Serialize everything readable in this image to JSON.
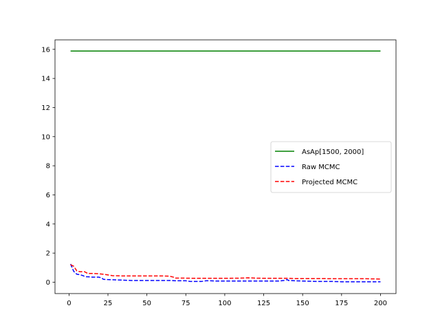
{
  "chart_data": {
    "type": "line",
    "title": "",
    "xlabel": "",
    "ylabel": "",
    "xlim": [
      -9,
      209.95
    ],
    "ylim": [
      -0.78,
      16.65
    ],
    "xticks": [
      0,
      25,
      50,
      75,
      100,
      125,
      150,
      175,
      200
    ],
    "yticks": [
      0,
      2,
      4,
      6,
      8,
      10,
      12,
      14,
      16
    ],
    "grid": false,
    "legend_position": "center-right",
    "series": [
      {
        "name": "AsAp[1500, 2000]",
        "color": "#008000",
        "style": "solid",
        "x": [
          1,
          200
        ],
        "y": [
          15.88,
          15.88
        ]
      },
      {
        "name": "Raw MCMC",
        "color": "#0000ff",
        "style": "dashed",
        "x": [
          1,
          3,
          5,
          7,
          9,
          10,
          11,
          15,
          19,
          21,
          22,
          25,
          30,
          35,
          40,
          50,
          60,
          65,
          68,
          70,
          75,
          78,
          80,
          85,
          88,
          90,
          95,
          100,
          110,
          120,
          125,
          130,
          135,
          138,
          140,
          141,
          145,
          150,
          160,
          170,
          175,
          180,
          190,
          200
        ],
        "y": [
          1.25,
          0.75,
          0.55,
          0.52,
          0.45,
          0.4,
          0.38,
          0.35,
          0.35,
          0.3,
          0.2,
          0.18,
          0.16,
          0.14,
          0.12,
          0.12,
          0.12,
          0.12,
          0.1,
          0.1,
          0.1,
          0.05,
          0.05,
          0.05,
          0.1,
          0.1,
          0.08,
          0.08,
          0.08,
          0.08,
          0.08,
          0.08,
          0.08,
          0.12,
          0.18,
          0.12,
          0.1,
          0.08,
          0.05,
          0.05,
          0.03,
          0.03,
          0.03,
          0.03
        ]
      },
      {
        "name": "Projected MCMC",
        "color": "#ff0000",
        "style": "dashed",
        "x": [
          1,
          3,
          5,
          7,
          10,
          12,
          15,
          19,
          22,
          25,
          28,
          30,
          35,
          40,
          50,
          60,
          64,
          65,
          67,
          68,
          70,
          75,
          80,
          100,
          110,
          115,
          120,
          125,
          130,
          140,
          145,
          150,
          160,
          170,
          180,
          190,
          200
        ],
        "y": [
          1.2,
          1.1,
          0.78,
          0.72,
          0.72,
          0.6,
          0.6,
          0.58,
          0.55,
          0.5,
          0.45,
          0.44,
          0.43,
          0.43,
          0.43,
          0.43,
          0.42,
          0.4,
          0.35,
          0.28,
          0.28,
          0.28,
          0.27,
          0.27,
          0.28,
          0.3,
          0.28,
          0.27,
          0.27,
          0.27,
          0.25,
          0.25,
          0.25,
          0.24,
          0.24,
          0.24,
          0.22
        ]
      }
    ]
  }
}
